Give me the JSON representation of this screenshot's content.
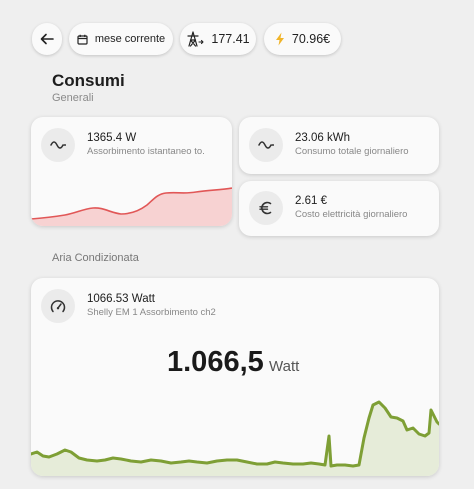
{
  "toolbar": {
    "period_label": "mese corrente",
    "power_value": "177.41",
    "cost_value": "70.96€"
  },
  "header": {
    "title": "Consumi",
    "subtitle": "Generali"
  },
  "cards": {
    "instant": {
      "value": "1365.4 W",
      "label": "Assorbimento istantaneo to.",
      "icon": "sine-wave-icon"
    },
    "daily_total": {
      "value": "23.06 kWh",
      "label": "Consumo totale giornaliero",
      "icon": "sine-wave-icon"
    },
    "daily_cost": {
      "value": "2.61 €",
      "label": "Costo elettricità giornaliero",
      "icon": "euro-icon"
    }
  },
  "section": {
    "title": "Aria Condizionata"
  },
  "ac_card": {
    "value": "1066.53 Watt",
    "label": "Shelly EM 1 Assorbimento ch2",
    "big_value": "1.066,5",
    "big_unit": "Watt",
    "icon": "gauge-icon"
  },
  "colors": {
    "red_line": "#e15757",
    "red_fill": "#f7d2d2",
    "green_line": "#7e9f35",
    "green_fill": "#e6ecd9"
  }
}
